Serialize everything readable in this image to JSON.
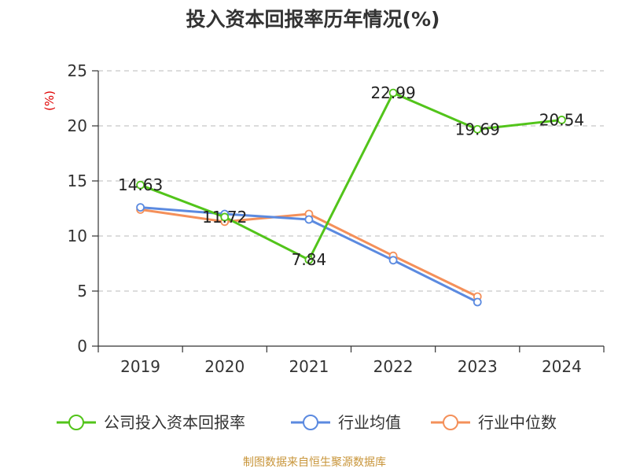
{
  "colors": {
    "company": "#52c41a",
    "industry_avg": "#5b8ae0",
    "industry_median": "#f4905a",
    "grid": "#c8c8c8",
    "axis": "#333333",
    "source": "#c8953a",
    "ylabel": "#e00000"
  },
  "chart_data": {
    "type": "line",
    "title": "投入资本回报率历年情况(%)",
    "ylabel": "(%)",
    "xlabel": "",
    "categories": [
      "2019",
      "2020",
      "2021",
      "2022",
      "2023",
      "2024"
    ],
    "ylim": [
      0,
      25
    ],
    "yticks": [
      0,
      5,
      10,
      15,
      20,
      25
    ],
    "grid": true,
    "series": [
      {
        "name": "公司投入资本回报率",
        "color_key": "company",
        "values": [
          14.63,
          11.72,
          7.84,
          22.99,
          19.69,
          20.54
        ],
        "labels": [
          "14.63",
          "11.72",
          "7.84",
          "22.99",
          "19.69",
          "20.54"
        ],
        "show_labels": true
      },
      {
        "name": "行业均值",
        "color_key": "industry_avg",
        "values": [
          12.6,
          12.0,
          11.5,
          7.8,
          4.0,
          null
        ],
        "show_labels": false
      },
      {
        "name": "行业中位数",
        "color_key": "industry_median",
        "values": [
          12.4,
          11.3,
          12.0,
          8.2,
          4.5,
          null
        ],
        "show_labels": false
      }
    ],
    "legend_position": "bottom",
    "source": "制图数据来自恒生聚源数据库"
  }
}
